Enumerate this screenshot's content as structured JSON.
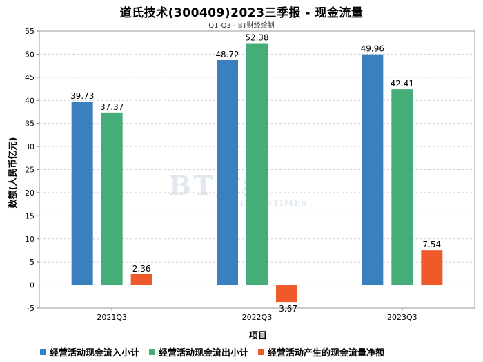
{
  "title": "道氏技术(300409)2023三季报 - 现金流量",
  "subtitle": "Q1-Q3 - BT财经绘制",
  "watermark": {
    "top": "BT财经",
    "bottom": "BUSINESSTIMES"
  },
  "colors": {
    "inflow": "#3a80bf",
    "outflow": "#45ad78",
    "net": "#ef5a2a"
  },
  "chart_data": {
    "type": "bar",
    "categories": [
      "2021Q3",
      "2022Q3",
      "2023Q3"
    ],
    "series": [
      {
        "name": "经营活动现金流入小计",
        "values": [
          39.73,
          48.72,
          49.96
        ]
      },
      {
        "name": "经营活动现金流出小计",
        "values": [
          37.37,
          52.38,
          42.41
        ]
      },
      {
        "name": "经营活动产生的现金流量净额",
        "values": [
          2.36,
          -3.67,
          7.54
        ]
      }
    ],
    "xlabel": "项目",
    "ylabel": "数额(人民币亿元)",
    "ylim": [
      -5,
      55
    ],
    "yticks": [
      -5,
      0,
      5,
      10,
      15,
      20,
      25,
      30,
      35,
      40,
      45,
      50,
      55
    ],
    "grid": true,
    "legend_position": "bottom"
  }
}
